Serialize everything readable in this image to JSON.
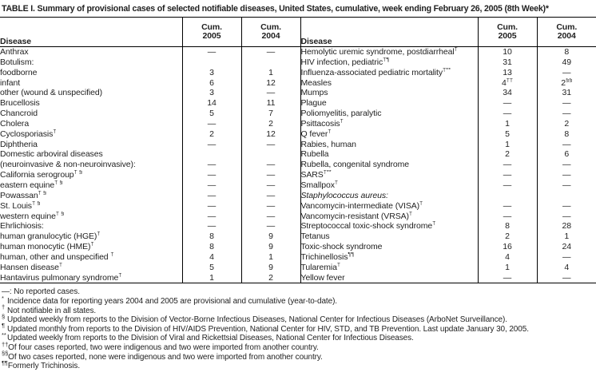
{
  "title": "TABLE I. Summary of provisional cases of selected notifiable diseases, United States, cumulative, week ending February 26, 2005 (8th Week)*",
  "header": {
    "disease": "Disease",
    "cum": "Cum.",
    "y2005": "2005",
    "y2004": "2004"
  },
  "no_cases_glyph": "—",
  "rows_left": [
    {
      "label": "Anthrax",
      "c05": "—",
      "c04": "—"
    },
    {
      "label": "Botulism:",
      "c05": "",
      "c04": ""
    },
    {
      "label": "foodborne",
      "indent": 2,
      "c05": "3",
      "c04": "1"
    },
    {
      "label": "infant",
      "indent": 2,
      "c05": "6",
      "c04": "12"
    },
    {
      "label": "other (wound & unspecified)",
      "indent": 2,
      "c05": "3",
      "c04": "—"
    },
    {
      "label": "Brucellosis",
      "c05": "14",
      "c04": "11"
    },
    {
      "label": "Chancroid",
      "c05": "5",
      "c04": "7"
    },
    {
      "label": "Cholera",
      "c05": "—",
      "c04": "2"
    },
    {
      "label": "Cyclosporiasis",
      "sup": "†",
      "c05": "2",
      "c04": "12"
    },
    {
      "label": "Diphtheria",
      "c05": "—",
      "c04": "—"
    },
    {
      "label": "Domestic arboviral diseases",
      "c05": "",
      "c04": ""
    },
    {
      "label": "(neuroinvasive & non-neuroinvasive):",
      "indent": 1,
      "c05": "—",
      "c04": "—"
    },
    {
      "label": "California serogroup",
      "sup": "† §",
      "indent": 2,
      "c05": "—",
      "c04": "—"
    },
    {
      "label": "eastern equine",
      "sup": "† §",
      "indent": 2,
      "c05": "—",
      "c04": "—"
    },
    {
      "label": "Powassan",
      "sup": "† §",
      "indent": 2,
      "c05": "—",
      "c04": "—"
    },
    {
      "label": "St. Louis",
      "sup": "† §",
      "indent": 2,
      "c05": "—",
      "c04": "—"
    },
    {
      "label": "western equine",
      "sup": "† §",
      "indent": 2,
      "c05": "—",
      "c04": "—"
    },
    {
      "label": "Ehrlichiosis:",
      "c05": "—",
      "c04": "—"
    },
    {
      "label": "human granulocytic (HGE)",
      "sup": "†",
      "indent": 2,
      "c05": "8",
      "c04": "9"
    },
    {
      "label": "human monocytic (HME)",
      "sup": "†",
      "indent": 2,
      "c05": "8",
      "c04": "9"
    },
    {
      "label": "human, other and unspecified ",
      "sup": "†",
      "indent": 2,
      "c05": "4",
      "c04": "1"
    },
    {
      "label": "Hansen disease",
      "sup": "†",
      "c05": "5",
      "c04": "9"
    },
    {
      "label": "Hantavirus pulmonary syndrome",
      "sup": "†",
      "c05": "1",
      "c04": "2"
    }
  ],
  "rows_right": [
    {
      "label": "Hemolytic uremic syndrome, postdiarrheal",
      "sup": "†",
      "c05": "10",
      "c04": "8"
    },
    {
      "label": "HIV infection, pediatric",
      "sup": "†¶",
      "c05": "31",
      "c04": "49"
    },
    {
      "label": "Influenza-associated pediatric mortality",
      "sup": "†**",
      "c05": "13",
      "c04": "—"
    },
    {
      "label": "Measles",
      "c05": "4",
      "c05sup": "††",
      "c04": "2",
      "c04sup": "§§"
    },
    {
      "label": "Mumps",
      "c05": "34",
      "c04": "31"
    },
    {
      "label": "Plague",
      "c05": "—",
      "c04": "—"
    },
    {
      "label": "Poliomyelitis, paralytic",
      "c05": "—",
      "c04": "—"
    },
    {
      "label": "Psittacosis",
      "sup": "†",
      "c05": "1",
      "c04": "2"
    },
    {
      "label": "Q fever",
      "sup": "†",
      "c05": "5",
      "c04": "8"
    },
    {
      "label": "Rabies, human",
      "c05": "1",
      "c04": "—"
    },
    {
      "label": "Rubella",
      "c05": "2",
      "c04": "6"
    },
    {
      "label": "Rubella, congenital syndrome",
      "c05": "—",
      "c04": "—"
    },
    {
      "label": "SARS",
      "sup": "†**",
      "c05": "—",
      "c04": "—"
    },
    {
      "label": "Smallpox",
      "sup": "†",
      "c05": "—",
      "c04": "—"
    },
    {
      "label": "Staphylococcus aureus:",
      "italic": true,
      "c05": "",
      "c04": ""
    },
    {
      "label": "Vancomycin-intermediate (VISA)",
      "sup": "†",
      "indent": 2,
      "c05": "—",
      "c04": "—"
    },
    {
      "label": "Vancomycin-resistant (VRSA)",
      "sup": "†",
      "indent": 2,
      "c05": "—",
      "c04": "—"
    },
    {
      "label": "Streptococcal toxic-shock syndrome",
      "sup": "†",
      "c05": "8",
      "c04": "28"
    },
    {
      "label": "Tetanus",
      "c05": "2",
      "c04": "1"
    },
    {
      "label": "Toxic-shock syndrome",
      "c05": "16",
      "c04": "24"
    },
    {
      "label": "Trichinellosis",
      "sup": "¶¶",
      "c05": "4",
      "c04": "—"
    },
    {
      "label": "Tularemia",
      "sup": "†",
      "c05": "1",
      "c04": "4"
    },
    {
      "label": "Yellow fever",
      "c05": "—",
      "c04": "—"
    }
  ],
  "footnotes": [
    {
      "marker": "",
      "text": "—:  No reported cases."
    },
    {
      "marker": "*",
      "text": "Incidence data for reporting years 2004 and 2005 are provisional and cumulative (year-to-date)."
    },
    {
      "marker": "†",
      "text": "Not notifiable in all states."
    },
    {
      "marker": "§",
      "text": "Updated weekly from reports to the Division of Vector-Borne Infectious Diseases, National Center for Infectious Diseases (ArboNet Surveillance)."
    },
    {
      "marker": "¶",
      "text": "Updated monthly from reports to the Division of HIV/AIDS Prevention, National Center for HIV, STD, and TB Prevention. Last update January 30, 2005."
    },
    {
      "marker": "**",
      "text": "Updated weekly from reports to the Division of Viral and Rickettsial Diseases, National Center for Infectious Diseases."
    },
    {
      "marker": "††",
      "text": "Of four cases reported, two were indigenous and two were imported from another country."
    },
    {
      "marker": "§§",
      "text": "Of two cases reported, none were indigenous and two were imported from another country."
    },
    {
      "marker": "¶¶",
      "text": "Formerly Trichinosis."
    }
  ]
}
